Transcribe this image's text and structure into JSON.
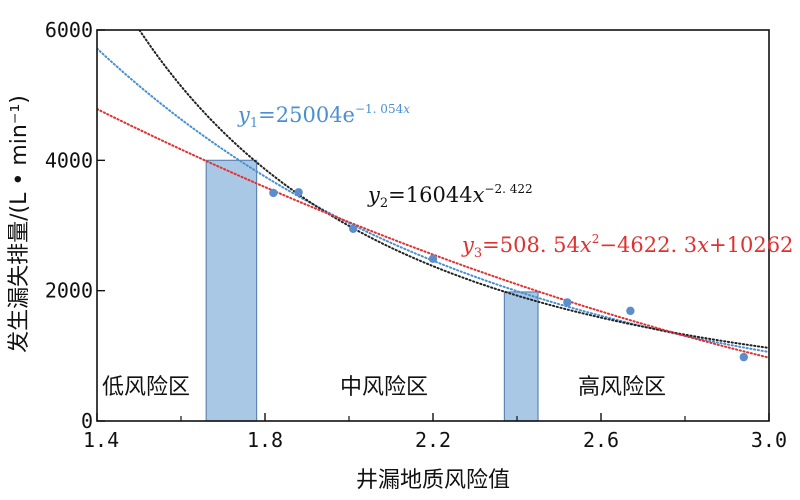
{
  "chart_data": {
    "type": "scatter",
    "title": "",
    "xlabel": "井漏地质风险值",
    "ylabel": "发生漏失排量/(L • min⁻¹)",
    "xlim": [
      1.4,
      3.0
    ],
    "ylim": [
      0,
      6000
    ],
    "grid": false,
    "x_ticks": [
      1.4,
      1.8,
      2.2,
      2.6,
      3.0
    ],
    "x_tick_labels": [
      "1.4",
      "1.8",
      "2.2",
      "2.6",
      "3.0"
    ],
    "y_ticks": [
      0,
      2000,
      4000,
      6000
    ],
    "y_tick_labels": [
      "0",
      "2000",
      "4000",
      "6000"
    ],
    "minor_x_ticks": [
      1.6,
      2.0,
      2.4,
      2.8
    ],
    "points": [
      {
        "x": 1.82,
        "y": 3500
      },
      {
        "x": 1.88,
        "y": 3510
      },
      {
        "x": 2.01,
        "y": 2950
      },
      {
        "x": 2.2,
        "y": 2490
      },
      {
        "x": 2.52,
        "y": 1820
      },
      {
        "x": 2.67,
        "y": 1690
      },
      {
        "x": 2.94,
        "y": 980
      }
    ],
    "bars": [
      {
        "x0": 1.66,
        "x1": 1.78,
        "y": 4000
      },
      {
        "x0": 2.37,
        "x1": 2.45,
        "y": 1980
      }
    ],
    "fits": [
      {
        "id": "y1",
        "kind": "exponential",
        "a": 25004,
        "b": -1.054,
        "color": "#4a8fd0"
      },
      {
        "id": "y2",
        "kind": "power",
        "a": 16044,
        "b": -2.422,
        "color": "#222222"
      },
      {
        "id": "y3",
        "kind": "quadratic",
        "c2": 508.54,
        "c1": -4622.3,
        "c0": 10262,
        "color": "#e03030"
      }
    ],
    "zones": [
      "低风险区",
      "中风险区",
      "高风险区"
    ]
  },
  "equations": {
    "y1": {
      "var": "y",
      "sub": "1",
      "rest": "=25004e",
      "sup": "−1. 054",
      "supvar": "x"
    },
    "y2": {
      "var": "y",
      "sub": "2",
      "rest": "=16044",
      "xvar": "x",
      "sup": "−2. 422"
    },
    "y3": {
      "var": "y",
      "sub": "3",
      "p1": "=508. 54",
      "x1": "x",
      "sup": "2",
      "p2": "−4622. 3",
      "x2": "x",
      "p3": "+10262"
    }
  },
  "colors": {
    "point": "#5b8ecb",
    "bar_fill": "#a9c8e6",
    "bar_stroke": "#5f86b3",
    "y1": "#4a8fd0",
    "y2": "#222222",
    "y3": "#e03030"
  }
}
